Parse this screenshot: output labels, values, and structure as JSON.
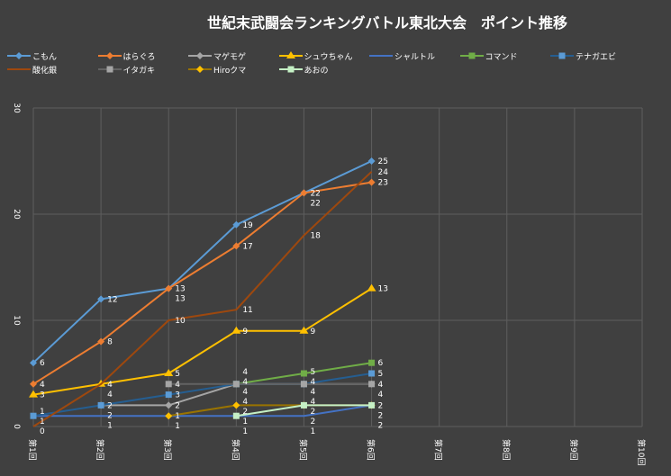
{
  "chart_data": {
    "type": "line",
    "title": "世紀末武闘会ランキングバトル東北大会　ポイント推移",
    "categories": [
      "第1回",
      "第2回",
      "第3回",
      "第4回",
      "第5回",
      "第6回",
      "第7回",
      "第8回",
      "第9回",
      "第10回"
    ],
    "ylim": [
      0,
      30
    ],
    "yticks": [
      0,
      10,
      20,
      30
    ],
    "grid": true,
    "legend_position": "top",
    "series": [
      {
        "name": "こもん",
        "line": "#5b9bd5",
        "marker": "#5b9bd5",
        "shape": "diamond",
        "values": [
          6,
          12,
          13,
          19,
          22,
          25,
          null,
          null,
          null,
          null
        ]
      },
      {
        "name": "はらぐろ",
        "line": "#ed7d31",
        "marker": "#ed7d31",
        "shape": "diamond",
        "values": [
          4,
          8,
          13,
          17,
          22,
          23,
          null,
          null,
          null,
          null
        ]
      },
      {
        "name": "マゲモゲ",
        "line": "#a5a5a5",
        "marker": "#a5a5a5",
        "shape": "diamond",
        "values": [
          null,
          2,
          2,
          4,
          4,
          4,
          null,
          null,
          null,
          null
        ]
      },
      {
        "name": "シュウちゃん",
        "line": "#ffc000",
        "marker": "#ffc000",
        "shape": "triangle",
        "values": [
          3,
          4,
          5,
          9,
          9,
          13,
          null,
          null,
          null,
          null
        ]
      },
      {
        "name": "シャルトル",
        "line": "#4472c4",
        "marker": "#4472c4",
        "shape": "none",
        "values": [
          1,
          1,
          1,
          1,
          1,
          2,
          null,
          null,
          null,
          null
        ]
      },
      {
        "name": "コマンド",
        "line": "#70ad47",
        "marker": "#70ad47",
        "shape": "square",
        "values": [
          null,
          null,
          null,
          4,
          5,
          6,
          null,
          null,
          null,
          null
        ]
      },
      {
        "name": "テナガエビ",
        "line": "#255e91",
        "marker": "#5b9bd5",
        "shape": "square",
        "values": [
          1,
          2,
          3,
          4,
          4,
          5,
          null,
          null,
          null,
          null
        ]
      },
      {
        "name": "酸化銀",
        "line": "#9e480e",
        "marker": "#9e480e",
        "shape": "none",
        "values": [
          0,
          4,
          10,
          11,
          18,
          24,
          null,
          null,
          null,
          null
        ]
      },
      {
        "name": "イタガキ",
        "line": "#636363",
        "marker": "#a5a5a5",
        "shape": "square",
        "values": [
          null,
          null,
          4,
          4,
          4,
          4,
          null,
          null,
          null,
          null
        ]
      },
      {
        "name": "Hiroクマ",
        "line": "#997300",
        "marker": "#ffc000",
        "shape": "diamond",
        "values": [
          null,
          null,
          1,
          2,
          2,
          2,
          null,
          null,
          null,
          null
        ]
      },
      {
        "name": "あおの",
        "line": "#c5f0c5",
        "marker": "#c5f0c5",
        "shape": "square",
        "values": [
          null,
          null,
          null,
          1,
          2,
          2,
          null,
          null,
          null,
          null
        ]
      }
    ]
  }
}
